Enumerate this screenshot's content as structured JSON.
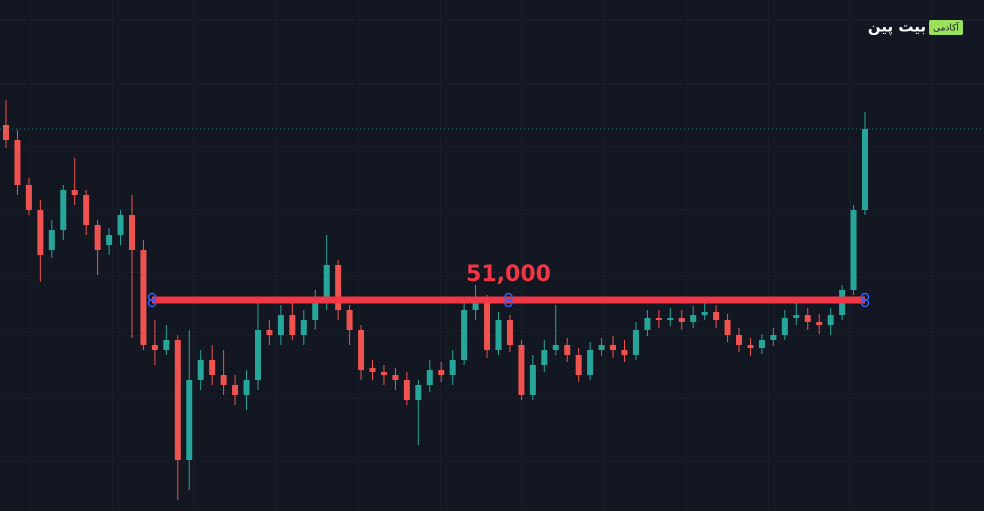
{
  "chart_data": {
    "type": "candlestick",
    "open": [
      54500,
      54200,
      53300,
      52800,
      52000,
      52400,
      53200,
      53100,
      52500,
      52100,
      52300,
      52700,
      52000,
      50100,
      50000,
      50200,
      47800,
      49400,
      49800,
      49500,
      49300,
      49100,
      49400,
      50400,
      50300,
      50700,
      50300,
      50600,
      51000,
      51700,
      50800,
      50400,
      49640,
      49560,
      49500,
      49400,
      49000,
      49300,
      49600,
      49500,
      49800,
      50800,
      51000,
      50000,
      50600,
      50100,
      49100,
      49700,
      50000,
      50100,
      49900,
      49500,
      50000,
      50100,
      50000,
      49900,
      50400,
      50640,
      50600,
      50640,
      50560,
      50700,
      50760,
      50600,
      50300,
      50100,
      50040,
      50200,
      50300,
      50640,
      50700,
      50560,
      50500,
      50700,
      51200,
      52800
    ],
    "high": [
      55000,
      54400,
      53440,
      53000,
      52600,
      53300,
      53840,
      53200,
      52600,
      52440,
      52800,
      53100,
      52200,
      50600,
      50500,
      50300,
      50400,
      50000,
      50100,
      50000,
      49500,
      49600,
      51000,
      50600,
      50900,
      51000,
      50800,
      51200,
      52300,
      51800,
      50900,
      50500,
      49800,
      49700,
      49640,
      49560,
      49400,
      49800,
      49760,
      50000,
      51000,
      51300,
      51100,
      50760,
      50700,
      50200,
      49900,
      50200,
      50900,
      50240,
      50040,
      50160,
      50240,
      50280,
      50200,
      50560,
      50800,
      50800,
      50840,
      50800,
      50880,
      51000,
      50900,
      50720,
      50440,
      50240,
      50320,
      50440,
      50800,
      51000,
      50840,
      50720,
      50840,
      51300,
      52900,
      54760
    ],
    "low": [
      54040,
      53100,
      52700,
      51360,
      51840,
      52200,
      52900,
      52300,
      51500,
      51900,
      52100,
      50240,
      50000,
      49700,
      49900,
      47000,
      47200,
      49200,
      49300,
      49100,
      48900,
      48800,
      49200,
      50100,
      50100,
      50200,
      50100,
      50400,
      50800,
      50600,
      50100,
      49400,
      49400,
      49300,
      49200,
      48900,
      48100,
      49160,
      49360,
      49300,
      49700,
      50600,
      49840,
      49900,
      49960,
      49000,
      49000,
      49560,
      49900,
      49760,
      49360,
      49400,
      49880,
      49840,
      49760,
      49800,
      50280,
      50440,
      50480,
      50400,
      50440,
      50600,
      50440,
      50160,
      49960,
      49880,
      49920,
      50080,
      50200,
      50500,
      50400,
      50320,
      50300,
      50600,
      51100,
      52700
    ],
    "close": [
      54200,
      53300,
      52800,
      51900,
      52400,
      53200,
      53100,
      52500,
      52000,
      52300,
      52700,
      52000,
      50100,
      50000,
      50200,
      47800,
      49400,
      49800,
      49500,
      49300,
      49100,
      49400,
      50400,
      50300,
      50700,
      50300,
      50600,
      51000,
      51700,
      50800,
      50400,
      49600,
      49560,
      49500,
      49400,
      49000,
      49300,
      49600,
      49500,
      49800,
      50800,
      51000,
      50000,
      50600,
      50100,
      49100,
      49700,
      50000,
      50100,
      49900,
      49500,
      50000,
      50100,
      50000,
      49900,
      50400,
      50640,
      50600,
      50640,
      50560,
      50700,
      50760,
      50600,
      50300,
      50100,
      50040,
      50200,
      50300,
      50640,
      50700,
      50560,
      50500,
      50700,
      51200,
      52800,
      54420
    ],
    "up_color": "#26a69a",
    "down_color": "#ef5350",
    "ylim": [
      46780,
      57000
    ],
    "annotation": {
      "label": "51,000",
      "value": 51000,
      "color": "#f23645"
    },
    "watermark": {
      "text": "بیت پین",
      "badge": "آکادمی"
    }
  }
}
